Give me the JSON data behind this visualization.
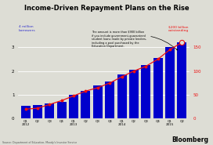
{
  "title": "Income-Driven Repayment Plans on the Rise",
  "categories": [
    "Q1\n2012",
    "Q2",
    "Q3",
    "Q4",
    "Q1\n2013",
    "Q2",
    "Q3",
    "Q4",
    "Q1\n2014",
    "Q2",
    "Q3",
    "Q4",
    "Q1\n2015",
    "Q2"
  ],
  "bar_values": [
    0.55,
    0.57,
    0.65,
    0.72,
    1.0,
    1.15,
    1.4,
    1.55,
    1.85,
    2.05,
    2.25,
    2.55,
    3.0,
    3.2
  ],
  "line_values": [
    20,
    22,
    30,
    38,
    48,
    58,
    65,
    75,
    88,
    100,
    110,
    125,
    145,
    160
  ],
  "bar_color": "#0000cc",
  "line_color": "#ee1111",
  "background_color": "#ddddd5",
  "ylim_left": [
    0,
    4
  ],
  "ylim_right": [
    0,
    200
  ],
  "ylabel_left": "4 million\nborrowers",
  "ylabel_right": "$200 billion\noutstanding",
  "yticks_left": [
    0,
    1,
    2,
    3
  ],
  "yticks_right": [
    0,
    50,
    100,
    150
  ],
  "source_text": "Source: Department of Education, Moody's Investor Service",
  "annotation_text": "The amount is more than $900 billion\nif you include government-guaranteed\nstudent loans made by private lenders,\nincluding a pool purchased by the\nEducation Department.",
  "bloomberg_text": "Bloomberg"
}
